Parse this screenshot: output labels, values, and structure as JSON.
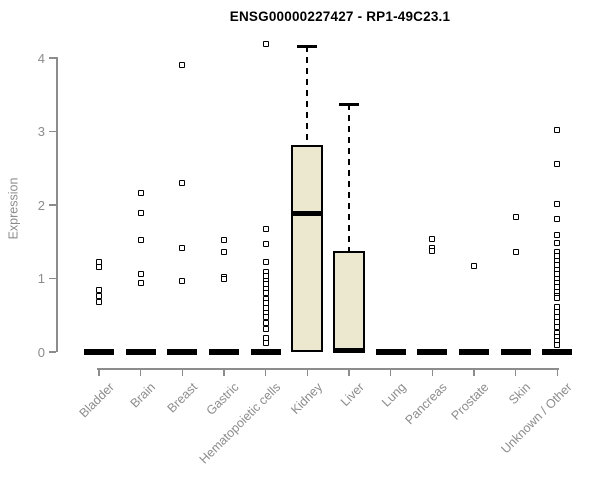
{
  "title": "ENSG00000227427 - RP1-49C23.1",
  "chart_data": {
    "type": "box",
    "title": "ENSG00000227427 - RP1-49C23.1",
    "xlabel": "",
    "ylabel": "Expression",
    "ylim": [
      0,
      4.3
    ],
    "yticks": [
      0,
      1,
      2,
      3,
      4
    ],
    "grid": false,
    "legend": "none",
    "categories": [
      "Bladder",
      "Brain",
      "Breast",
      "Gastric",
      "Hematopoietic cells",
      "Kidney",
      "Liver",
      "Lung",
      "Pancreas",
      "Prostate",
      "Skin",
      "Unknown / Other"
    ],
    "boxes": [
      {
        "category": "Kidney",
        "q1": 0,
        "median": 1.88,
        "q3": 2.81,
        "whisker_low": 0,
        "whisker_high": 4.16
      },
      {
        "category": "Liver",
        "q1": 0,
        "median": 0.02,
        "q3": 1.37,
        "whisker_low": 0,
        "whisker_high": 3.37
      }
    ],
    "collapsed_at_zero": [
      "Bladder",
      "Brain",
      "Breast",
      "Gastric",
      "Hematopoietic cells",
      "Lung",
      "Pancreas",
      "Prostate",
      "Skin",
      "Unknown / Other"
    ],
    "outliers": {
      "Bladder": [
        1.22,
        1.16,
        0.84,
        0.76,
        0.68
      ],
      "Brain": [
        2.16,
        1.89,
        1.52,
        1.06,
        0.94
      ],
      "Breast": [
        3.9,
        2.3,
        1.42,
        0.96
      ],
      "Gastric": [
        1.52,
        1.36,
        1.02,
        0.99
      ],
      "Hematopoietic cells": [
        4.19,
        1.67,
        1.47,
        1.22,
        1.09,
        1.03,
        0.97,
        0.92,
        0.86,
        0.8,
        0.72,
        0.66,
        0.6,
        0.53,
        0.47,
        0.4,
        0.31,
        0.19,
        0.12
      ],
      "Kidney": [],
      "Liver": [],
      "Lung": [],
      "Pancreas": [
        1.54,
        1.42,
        1.38
      ],
      "Prostate": [
        1.17
      ],
      "Skin": [
        1.84,
        1.36
      ],
      "Unknown / Other": [
        3.02,
        2.56,
        2.02,
        1.81,
        1.59,
        1.48,
        1.36,
        1.3,
        1.24,
        1.18,
        1.12,
        1.06,
        1.0,
        0.94,
        0.88,
        0.82,
        0.76,
        0.73,
        0.61,
        0.54,
        0.47,
        0.41,
        0.34,
        0.26,
        0.2,
        0.15,
        0.09
      ]
    },
    "colors": {
      "box_fill": "#ece7cf",
      "box_border": "#000000",
      "median": "#000000",
      "outlier": "#000000",
      "axis": "#8c8c8c",
      "tick_label": "#8c8c8c",
      "title": "#000000",
      "background": "#ffffff"
    }
  }
}
